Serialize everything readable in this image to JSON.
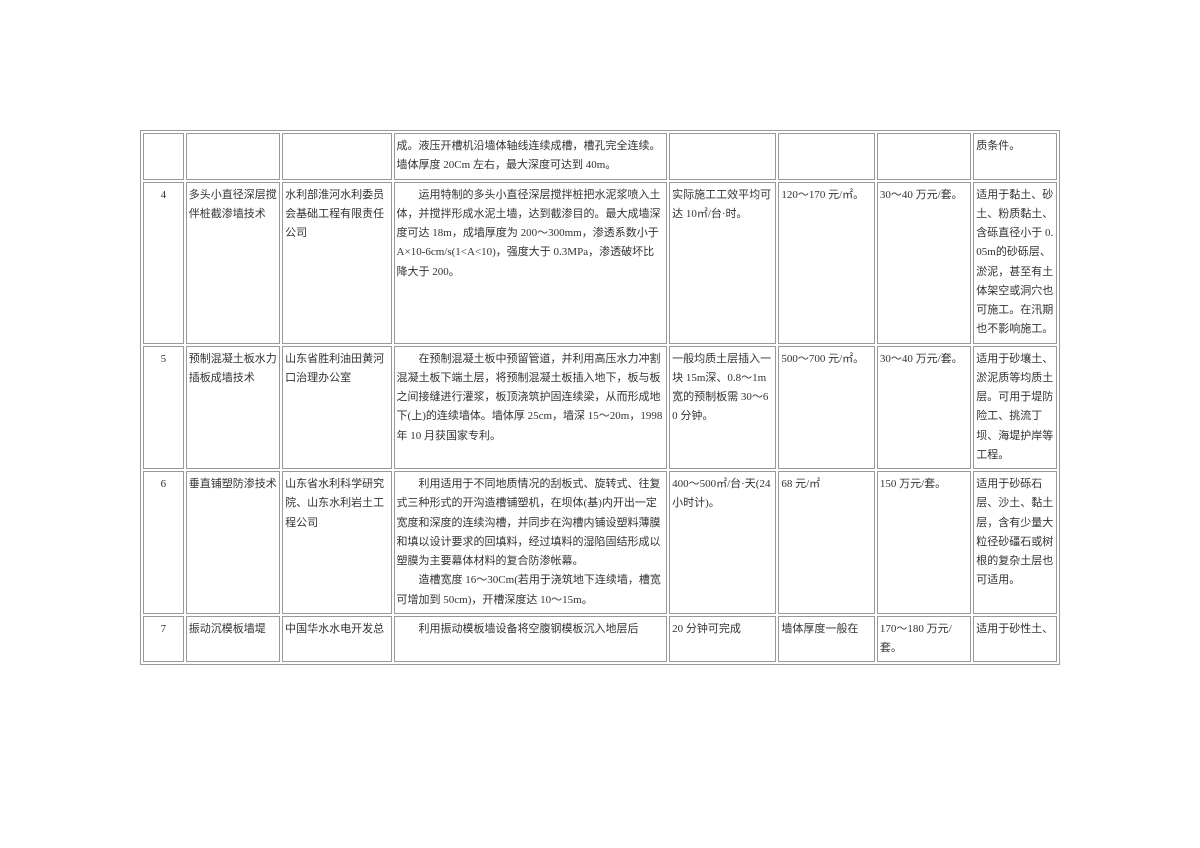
{
  "rows": [
    {
      "num": "",
      "name": "",
      "org": "",
      "desc": "成。液压开槽机沿墙体轴线连续成槽，槽孔完全连续。墙体厚度 20Cm 左右，最大深度可达到 40m。",
      "col5": "",
      "col6": "",
      "col7": "",
      "col8": "质条件。"
    },
    {
      "num": "4",
      "name": "多头小直径深层搅伴桩截渗墙技术",
      "org": "水利部淮河水利委员会基础工程有限责任公司",
      "desc": "　　运用特制的多头小直径深层搅拌桩把水泥浆喷入土体，并搅拌形成水泥土墙，达到截渗目的。最大成墙深度可达 18m，成墙厚度为 200～300mm，渗透系数小于 A×10-6cm/s(1<A<10)，强度大于 0.3MPa，渗透破坏比降大于 200。",
      "col5": "实际施工工效平均可达 10㎡/台·时。",
      "col6": "120～170 元/㎡。",
      "col7": "30～40 万元/套。",
      "col8": "适用于黏土、砂土、粉质黏土、含砾直径小于 0.05m的砂砾层、淤泥，甚至有土体架空或洞穴也可施工。在汛期也不影响施工。"
    },
    {
      "num": "5",
      "name": "预制混凝土板水力插板成墙技术",
      "org": "山东省胜利油田黄河口治理办公室",
      "desc": "　　在预制混凝土板中预留管道，并利用高压水力冲割混凝土板下端土层，将预制混凝土板插入地下，板与板之间接缝进行灌浆，板顶浇筑护固连续梁，从而形成地下(上)的连续墙体。墙体厚 25cm，墙深 15～20m，1998 年 10 月获国家专利。",
      "col5": "一般均质土层插入一块 15m深、0.8～1m宽的预制板需 30～60 分钟。",
      "col6": "500～700 元/㎡。",
      "col7": "30～40 万元/套。",
      "col8": "适用于砂壤土、淤泥质等均质土层。可用于堤防险工、挑流丁坝、海堤护岸等工程。"
    },
    {
      "num": "6",
      "name": "垂直铺塑防渗技术",
      "org": "山东省水利科学研究院、山东水利岩土工程公司",
      "desc": "　　利用适用于不同地质情况的刮板式、旋转式、往复式三种形式的开沟造槽铺塑机，在坝体(基)内开出一定宽度和深度的连续沟槽，并同步在沟槽内铺设塑料薄膜和填以设计要求的回填料，经过填料的湿陷固结形成以塑膜为主要幕体材料的复合防渗帐幕。\n　　造槽宽度 16～30Cm(若用于浇筑地下连续墙，槽宽可增加到 50cm)，开槽深度达 10～15m。",
      "col5": "400～500㎡/台·天(24 小时计)。",
      "col6": "68 元/㎡",
      "col7": "150 万元/套。",
      "col8": "适用于砂砾石层、沙土、黏土层，含有少量大粒径砂礓石或树根的复杂土层也可适用。"
    },
    {
      "num": "7",
      "name": "振动沉模板墙堤",
      "org": "中国华水水电开发总",
      "desc": "　　利用振动模板墙设备将空腹钢模板沉入地层后",
      "col5": "20 分钟可完成",
      "col6": "墙体厚度一般在",
      "col7": "170～180 万元/套。",
      "col8": "适用于砂性土、"
    }
  ]
}
